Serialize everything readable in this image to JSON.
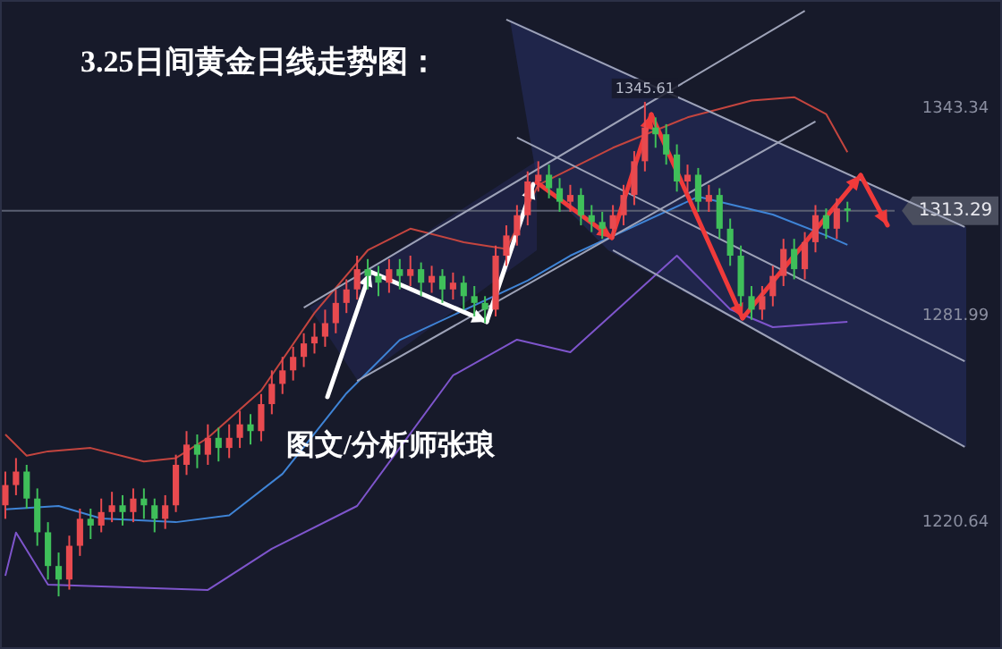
{
  "chart_data": {
    "type": "candlestick",
    "title": "3.25日间黄金日线走势图：",
    "categories": [
      null,
      null,
      null,
      null,
      null,
      null,
      null,
      null,
      null,
      null,
      null,
      null,
      null,
      null,
      null,
      null,
      null,
      null,
      null,
      null,
      null,
      null,
      null,
      null,
      null,
      null,
      null,
      null,
      null,
      null,
      null,
      null,
      null,
      null,
      null,
      null,
      null,
      null,
      null,
      null,
      null,
      null,
      null,
      null,
      null,
      null,
      null,
      null,
      null,
      null,
      null,
      null,
      null,
      null,
      null,
      null,
      null,
      null,
      null,
      null,
      null,
      null,
      null,
      null,
      null,
      null,
      null,
      null,
      null,
      null,
      null,
      null,
      null,
      null,
      null,
      null,
      null,
      null,
      null,
      null,
      null,
      null,
      null,
      null,
      null,
      null,
      null,
      null,
      null,
      null,
      null,
      null,
      null,
      null
    ],
    "ohlc": [
      [
        1226,
        1236,
        1222,
        1232
      ],
      [
        1232,
        1240,
        1229,
        1236
      ],
      [
        1236,
        1238,
        1225,
        1228
      ],
      [
        1228,
        1231,
        1214,
        1218
      ],
      [
        1218,
        1221,
        1204,
        1208
      ],
      [
        1208,
        1212,
        1199,
        1204
      ],
      [
        1204,
        1217,
        1201,
        1214
      ],
      [
        1214,
        1225,
        1211,
        1222
      ],
      [
        1222,
        1225,
        1216,
        1220
      ],
      [
        1220,
        1228,
        1218,
        1224
      ],
      [
        1224,
        1230,
        1221,
        1226
      ],
      [
        1226,
        1229,
        1220,
        1224
      ],
      [
        1224,
        1231,
        1221,
        1228
      ],
      [
        1228,
        1231,
        1222,
        1226
      ],
      [
        1226,
        1228,
        1218,
        1222
      ],
      [
        1222,
        1229,
        1219,
        1226
      ],
      [
        1226,
        1241,
        1224,
        1238
      ],
      [
        1238,
        1248,
        1235,
        1244
      ],
      [
        1244,
        1247,
        1237,
        1241
      ],
      [
        1241,
        1250,
        1238,
        1246
      ],
      [
        1246,
        1249,
        1239,
        1243
      ],
      [
        1243,
        1250,
        1240,
        1246
      ],
      [
        1246,
        1254,
        1243,
        1250
      ],
      [
        1250,
        1253,
        1244,
        1248
      ],
      [
        1248,
        1259,
        1245,
        1256
      ],
      [
        1256,
        1266,
        1253,
        1262
      ],
      [
        1262,
        1270,
        1259,
        1266
      ],
      [
        1266,
        1273,
        1263,
        1270
      ],
      [
        1270,
        1277,
        1267,
        1274
      ],
      [
        1274,
        1280,
        1271,
        1276
      ],
      [
        1276,
        1284,
        1273,
        1280
      ],
      [
        1280,
        1290,
        1277,
        1286
      ],
      [
        1286,
        1293,
        1283,
        1290
      ],
      [
        1290,
        1300,
        1287,
        1296
      ],
      [
        1296,
        1299,
        1290,
        1294
      ],
      [
        1294,
        1297,
        1288,
        1292
      ],
      [
        1292,
        1299,
        1289,
        1296
      ],
      [
        1296,
        1299,
        1290,
        1294
      ],
      [
        1294,
        1300,
        1291,
        1296
      ],
      [
        1296,
        1298,
        1288,
        1292
      ],
      [
        1292,
        1297,
        1289,
        1294
      ],
      [
        1294,
        1296,
        1286,
        1290
      ],
      [
        1290,
        1295,
        1287,
        1292
      ],
      [
        1292,
        1294,
        1284,
        1288
      ],
      [
        1288,
        1291,
        1282,
        1286
      ],
      [
        1286,
        1288,
        1280,
        1284
      ],
      [
        1284,
        1303,
        1282,
        1300
      ],
      [
        1300,
        1309,
        1297,
        1306
      ],
      [
        1306,
        1315,
        1303,
        1312
      ],
      [
        1312,
        1325,
        1309,
        1322
      ],
      [
        1322,
        1328,
        1319,
        1324
      ],
      [
        1324,
        1327,
        1317,
        1320
      ],
      [
        1320,
        1323,
        1313,
        1316
      ],
      [
        1316,
        1321,
        1313,
        1318
      ],
      [
        1318,
        1320,
        1309,
        1312
      ],
      [
        1312,
        1315,
        1307,
        1310
      ],
      [
        1310,
        1313,
        1305,
        1308
      ],
      [
        1308,
        1315,
        1305,
        1312
      ],
      [
        1312,
        1321,
        1309,
        1318
      ],
      [
        1318,
        1331,
        1315,
        1328
      ],
      [
        1328,
        1345.61,
        1325,
        1338
      ],
      [
        1338,
        1341,
        1332,
        1336
      ],
      [
        1336,
        1339,
        1327,
        1330
      ],
      [
        1330,
        1333,
        1319,
        1322
      ],
      [
        1322,
        1327,
        1319,
        1324
      ],
      [
        1324,
        1326,
        1313,
        1316
      ],
      [
        1316,
        1321,
        1313,
        1318
      ],
      [
        1318,
        1320,
        1305,
        1308
      ],
      [
        1308,
        1311,
        1297,
        1300
      ],
      [
        1300,
        1303,
        1285,
        1288
      ],
      [
        1288,
        1291,
        1281,
        1284
      ],
      [
        1284,
        1291,
        1281,
        1288
      ],
      [
        1288,
        1297,
        1285,
        1294
      ],
      [
        1294,
        1305,
        1291,
        1302
      ],
      [
        1302,
        1305,
        1293,
        1296
      ],
      [
        1296,
        1307,
        1293,
        1304
      ],
      [
        1304,
        1315,
        1301,
        1312
      ],
      [
        1312,
        1314,
        1305,
        1308
      ],
      [
        1308,
        1317,
        1305,
        1314
      ],
      [
        1314,
        1316,
        1310,
        1313.29
      ],
      null,
      null,
      null,
      null,
      null,
      null,
      null,
      null,
      null,
      null,
      null,
      null,
      null,
      null
    ],
    "colors": [
      "#e84a4f",
      "#e84a4f",
      "#3fbf5a",
      "#3fbf5a",
      "#3fbf5a",
      "#3fbf5a",
      "#e84a4f",
      "#e84a4f",
      "#3fbf5a",
      "#e84a4f",
      "#e84a4f",
      "#3fbf5a",
      "#e84a4f",
      "#3fbf5a",
      "#3fbf5a",
      "#e84a4f",
      "#e84a4f",
      "#e84a4f",
      "#3fbf5a",
      "#e84a4f",
      "#3fbf5a",
      "#e84a4f",
      "#e84a4f",
      "#3fbf5a",
      "#e84a4f",
      "#e84a4f",
      "#e84a4f",
      "#e84a4f",
      "#e84a4f",
      "#e84a4f",
      "#e84a4f",
      "#e84a4f",
      "#e84a4f",
      "#e84a4f",
      "#3fbf5a",
      "#3fbf5a",
      "#e84a4f",
      "#3fbf5a",
      "#e84a4f",
      "#3fbf5a",
      "#e84a4f",
      "#3fbf5a",
      "#e84a4f",
      "#3fbf5a",
      "#3fbf5a",
      "#3fbf5a",
      "#e84a4f",
      "#e84a4f",
      "#e84a4f",
      "#e84a4f",
      "#e84a4f",
      "#3fbf5a",
      "#3fbf5a",
      "#e84a4f",
      "#3fbf5a",
      "#3fbf5a",
      "#3fbf5a",
      "#e84a4f",
      "#e84a4f",
      "#e84a4f",
      "#e84a4f",
      "#3fbf5a",
      "#3fbf5a",
      "#3fbf5a",
      "#e84a4f",
      "#3fbf5a",
      "#e84a4f",
      "#3fbf5a",
      "#3fbf5a",
      "#3fbf5a",
      "#3fbf5a",
      "#e84a4f",
      "#e84a4f",
      "#e84a4f",
      "#3fbf5a",
      "#e84a4f",
      "#e84a4f",
      "#3fbf5a",
      "#e84a4f",
      "#3fbf5a",
      null,
      null,
      null,
      null,
      null,
      null,
      null,
      null,
      null,
      null,
      null,
      null,
      null,
      null
    ],
    "series": [
      {
        "type": "line",
        "color": "#c4453f",
        "values": [
          1247,
          null,
          1240.7,
          null,
          1242,
          null,
          null,
          null,
          1243,
          null,
          null,
          null,
          null,
          1239,
          null,
          null,
          1240,
          null,
          null,
          1246,
          null,
          null,
          null,
          null,
          1260,
          null,
          null,
          null,
          null,
          1283,
          null,
          null,
          null,
          null,
          1301.6,
          null,
          null,
          null,
          1308,
          null,
          null,
          null,
          null,
          1304,
          null,
          null,
          null,
          1302,
          null,
          null,
          1321,
          null,
          null,
          null,
          null,
          null,
          null,
          1332,
          null,
          null,
          null,
          null,
          null,
          null,
          1341,
          null,
          null,
          null,
          null,
          null,
          1346,
          null,
          null,
          null,
          1347,
          null,
          null,
          1342,
          null,
          1330.7,
          null,
          null,
          null,
          null,
          null,
          null,
          null,
          null,
          null,
          null,
          null,
          null,
          null,
          null
        ]
      },
      {
        "type": "line",
        "color": "#3f84d6",
        "values": [
          1224.8,
          null,
          null,
          null,
          null,
          1225.8,
          null,
          null,
          null,
          1222.1,
          null,
          null,
          null,
          null,
          null,
          null,
          1221,
          null,
          null,
          null,
          null,
          1223,
          null,
          null,
          null,
          null,
          1235.3,
          null,
          null,
          null,
          null,
          null,
          1259.2,
          null,
          null,
          null,
          null,
          1275,
          null,
          null,
          null,
          null,
          null,
          null,
          null,
          null,
          null,
          null,
          null,
          1292.6,
          null,
          null,
          null,
          1300,
          null,
          null,
          null,
          null,
          null,
          null,
          null,
          null,
          null,
          null,
          null,
          1317.5,
          null,
          null,
          null,
          null,
          null,
          null,
          1312.2,
          null,
          null,
          null,
          null,
          1306,
          null,
          1303.2,
          null,
          null,
          null,
          null,
          null,
          null,
          null,
          null,
          null,
          null,
          null,
          null,
          null,
          null
        ]
      },
      {
        "type": "line",
        "color": "#7e55cc",
        "values": [
          1205.1,
          1217.9,
          null,
          null,
          1202.5,
          null,
          null,
          null,
          null,
          null,
          null,
          null,
          null,
          null,
          null,
          null,
          null,
          null,
          null,
          1200.9,
          null,
          null,
          null,
          null,
          null,
          1213.1,
          null,
          null,
          null,
          null,
          null,
          null,
          null,
          1225.8,
          null,
          null,
          null,
          null,
          null,
          null,
          null,
          null,
          1264.5,
          null,
          null,
          null,
          null,
          null,
          1275.1,
          null,
          null,
          null,
          null,
          1271.4,
          null,
          null,
          null,
          null,
          null,
          null,
          null,
          null,
          null,
          1300,
          null,
          null,
          null,
          null,
          1284.1,
          null,
          null,
          null,
          1278.8,
          null,
          null,
          null,
          null,
          null,
          null,
          1280.4,
          null,
          null,
          null,
          null,
          null,
          null,
          null,
          null,
          null,
          null,
          null,
          null,
          null,
          null
        ]
      },
      {
        "type": "line",
        "color": "#9ea3b8",
        "values": [
          null,
          null,
          null,
          null,
          null,
          null,
          null,
          null,
          null,
          null,
          null,
          null,
          null,
          null,
          null,
          null,
          null,
          null,
          null,
          null,
          null,
          null,
          null,
          null,
          null,
          null,
          null,
          null,
          1284.6,
          null,
          null,
          null,
          null,
          null,
          null,
          null,
          null,
          null,
          null,
          null,
          null,
          null,
          null,
          null,
          null,
          null,
          null,
          null,
          null,
          null,
          null,
          null,
          null,
          null,
          null,
          null,
          null,
          null,
          null,
          null,
          null,
          null,
          null,
          null,
          null,
          null,
          null,
          null,
          null,
          null,
          null,
          null,
          null,
          null,
          null,
          1372.6,
          null,
          null,
          null,
          null,
          null,
          null,
          null,
          null,
          null,
          null,
          null,
          null,
          null,
          null,
          null,
          null,
          null,
          null
        ]
      },
      {
        "type": "line",
        "color": "#9ea3b8",
        "values": [
          null,
          null,
          null,
          null,
          null,
          null,
          null,
          null,
          null,
          null,
          null,
          null,
          null,
          null,
          null,
          null,
          null,
          null,
          null,
          null,
          null,
          null,
          null,
          null,
          null,
          null,
          null,
          null,
          null,
          null,
          null,
          null,
          null,
          1262.9,
          null,
          null,
          null,
          null,
          null,
          null,
          null,
          null,
          null,
          null,
          null,
          null,
          null,
          null,
          null,
          null,
          null,
          null,
          null,
          null,
          null,
          null,
          null,
          null,
          null,
          null,
          null,
          null,
          null,
          null,
          null,
          null,
          null,
          null,
          null,
          null,
          null,
          null,
          null,
          null,
          null,
          null,
          1339.8,
          null,
          null,
          null,
          null,
          null,
          null,
          null,
          null,
          null,
          null,
          null,
          null,
          null,
          null,
          null,
          null,
          null
        ]
      },
      {
        "type": "line",
        "color": "#9ea3b8",
        "values": [
          null,
          null,
          null,
          null,
          null,
          null,
          null,
          null,
          null,
          null,
          null,
          null,
          null,
          null,
          null,
          null,
          null,
          null,
          null,
          null,
          null,
          null,
          null,
          null,
          null,
          null,
          null,
          null,
          null,
          null,
          null,
          null,
          null,
          null,
          null,
          null,
          null,
          null,
          null,
          null,
          null,
          null,
          null,
          null,
          null,
          null,
          null,
          1370,
          null,
          null,
          null,
          null,
          null,
          null,
          null,
          null,
          null,
          null,
          null,
          null,
          null,
          null,
          null,
          null,
          null,
          null,
          null,
          null,
          null,
          null,
          null,
          null,
          null,
          null,
          null,
          null,
          null,
          null,
          null,
          null,
          null,
          null,
          null,
          null,
          null,
          null,
          null,
          null,
          null,
          null,
          1308.5,
          null,
          null,
          null
        ]
      },
      {
        "type": "line",
        "color": "#9ea3b8",
        "values": [
          null,
          null,
          null,
          null,
          null,
          null,
          null,
          null,
          null,
          null,
          null,
          null,
          null,
          null,
          null,
          null,
          null,
          null,
          null,
          null,
          null,
          null,
          null,
          null,
          null,
          null,
          null,
          null,
          null,
          null,
          null,
          null,
          null,
          null,
          null,
          null,
          null,
          null,
          null,
          null,
          null,
          null,
          null,
          null,
          null,
          null,
          null,
          null,
          1335,
          null,
          null,
          null,
          null,
          null,
          null,
          null,
          null,
          null,
          null,
          null,
          null,
          null,
          null,
          null,
          null,
          null,
          null,
          null,
          null,
          null,
          null,
          null,
          null,
          null,
          null,
          null,
          null,
          null,
          null,
          null,
          null,
          null,
          null,
          null,
          null,
          null,
          null,
          null,
          null,
          null,
          1268.7,
          null,
          null,
          null
        ]
      },
      {
        "type": "line",
        "color": "#9ea3b8",
        "values": [
          null,
          null,
          null,
          null,
          null,
          null,
          null,
          null,
          null,
          null,
          null,
          null,
          null,
          null,
          null,
          null,
          null,
          null,
          null,
          null,
          null,
          null,
          null,
          null,
          null,
          null,
          null,
          null,
          null,
          null,
          null,
          null,
          null,
          null,
          null,
          null,
          null,
          null,
          null,
          null,
          null,
          null,
          null,
          null,
          null,
          null,
          null,
          null,
          null,
          null,
          null,
          null,
          null,
          null,
          null,
          null,
          null,
          1301.6,
          null,
          null,
          null,
          null,
          null,
          null,
          null,
          null,
          null,
          null,
          null,
          null,
          null,
          null,
          null,
          null,
          null,
          null,
          null,
          null,
          null,
          null,
          null,
          null,
          null,
          null,
          null,
          null,
          null,
          null,
          null,
          null,
          1243.3,
          null,
          null,
          null
        ]
      }
    ],
    "ylim": [
      1183.4,
      1375.8
    ],
    "yticks": [
      {
        "value": 1343.34,
        "label": "1343.34"
      },
      {
        "value": 1281.99,
        "label": "1281.99"
      },
      {
        "value": 1220.64,
        "label": "1220.64"
      }
    ],
    "tick_labels": "y",
    "ref_lines": [
      {
        "axis": "y",
        "value": 1313.29,
        "label": "1313.29",
        "color": "#5a5f72"
      }
    ],
    "annotations": [
      "图文/分析师张琅",
      {
        "text": "1345.61",
        "y": 1345.61
      }
    ]
  }
}
